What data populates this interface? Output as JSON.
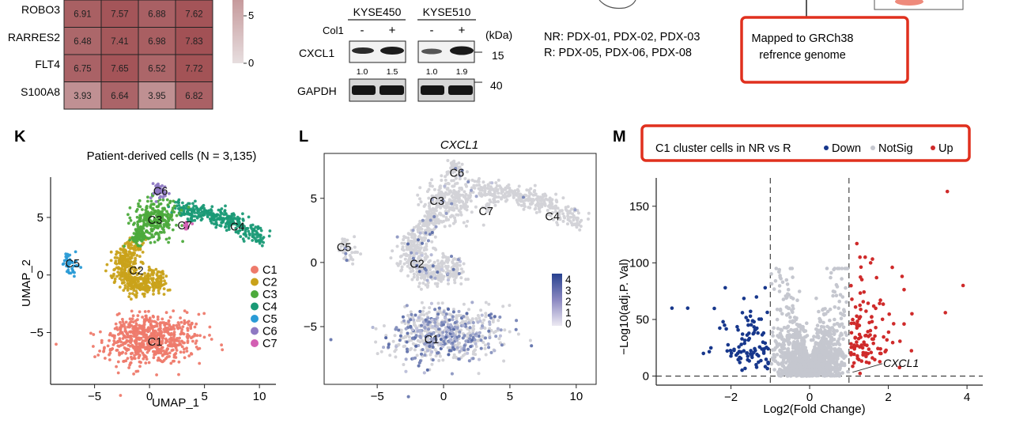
{
  "heatmap": {
    "rows": [
      {
        "gene": "ROBO3",
        "values": [
          6.91,
          7.57,
          6.88,
          7.62
        ]
      },
      {
        "gene": "RARRES2",
        "values": [
          6.48,
          7.41,
          6.98,
          7.83
        ]
      },
      {
        "gene": "FLT4",
        "values": [
          6.75,
          7.65,
          6.52,
          7.72
        ]
      },
      {
        "gene": "S100A8",
        "values": [
          3.93,
          6.64,
          3.95,
          6.82
        ]
      }
    ],
    "colorbar_ticks": [
      "5",
      "0"
    ],
    "colors": {
      "high": "#a14e52",
      "low": "#ddd0d1"
    }
  },
  "western_blot": {
    "cell_lines": [
      "KYSE450",
      "KYSE510"
    ],
    "treatment_label": "Col1",
    "lane_signs": [
      "-",
      "+",
      "-",
      "+"
    ],
    "unit_label": "(kDa)",
    "proteins": [
      {
        "name": "CXCL1",
        "kda": "15",
        "quant": [
          "1.0",
          "1.5",
          "1.0",
          "1.9"
        ]
      },
      {
        "name": "GAPDH",
        "kda": "40"
      }
    ]
  },
  "groups": {
    "nr_line": "NR: PDX-01, PDX-02, PDX-03",
    "r_line": "R: PDX-05, PDX-06, PDX-08"
  },
  "workflow_box": {
    "line1": "Mapped to GRCh38",
    "line2": "refrence genome",
    "highlight_color": "#e0301e"
  },
  "panel_k": {
    "letter": "K",
    "title": "Patient-derived cells (N = 3,135)",
    "xlabel": "UMAP_1",
    "ylabel": "UMAP_2",
    "xticks": [
      "−5",
      "0",
      "5",
      "10"
    ],
    "yticks": [
      "5",
      "0",
      "−5"
    ],
    "clusters": [
      {
        "name": "C1",
        "color": "#ee7a6b"
      },
      {
        "name": "C2",
        "color": "#c9a21a"
      },
      {
        "name": "C3",
        "color": "#4caa3c"
      },
      {
        "name": "C4",
        "color": "#1a9a76"
      },
      {
        "name": "C5",
        "color": "#2a9bd6"
      },
      {
        "name": "C6",
        "color": "#8e79c3"
      },
      {
        "name": "C7",
        "color": "#d35fb3"
      }
    ]
  },
  "panel_l": {
    "letter": "L",
    "title": "CXCL1",
    "xticks": [
      "−5",
      "0",
      "5",
      "10"
    ],
    "yticks": [
      "5",
      "0",
      "−5"
    ],
    "cluster_labels": [
      "C6",
      "C3",
      "C7",
      "C4",
      "C5",
      "C2",
      "C1"
    ],
    "colorbar_ticks": [
      "4",
      "3",
      "2",
      "1",
      "0"
    ],
    "colors": {
      "base": "#d3d3d8",
      "high": "#27418f"
    }
  },
  "panel_m": {
    "letter": "M",
    "legend_title": "C1 cluster cells in NR vs R",
    "legend_items": [
      {
        "label": "Down",
        "color": "#17378c"
      },
      {
        "label": "NotSig",
        "color": "#c5c7cf"
      },
      {
        "label": "Up",
        "color": "#cf2a2a"
      }
    ],
    "xlabel": "Log2(Fold Change)",
    "ylabel": "−Log10(adj.P. Val)",
    "xticks": [
      "−2",
      "0",
      "2",
      "4"
    ],
    "yticks": [
      "150",
      "100",
      "50",
      "0"
    ],
    "annotation": "CXCL1"
  },
  "chart_data": [
    {
      "type": "heatmap",
      "rows": [
        "ROBO3",
        "RARRES2",
        "FLT4",
        "S100A8"
      ],
      "values": [
        [
          6.91,
          7.57,
          6.88,
          7.62
        ],
        [
          6.48,
          7.41,
          6.98,
          7.83
        ],
        [
          6.75,
          7.65,
          6.52,
          7.72
        ],
        [
          3.93,
          6.64,
          3.95,
          6.82
        ]
      ],
      "colorbar_range": [
        0,
        8
      ]
    },
    {
      "type": "scatter",
      "title": "Patient-derived cells (N = 3,135)",
      "xlabel": "UMAP_1",
      "ylabel": "UMAP_2",
      "xlim": [
        -9,
        11.5
      ],
      "ylim": [
        -9.5,
        8.5
      ],
      "series": [
        {
          "name": "C1",
          "center": [
            0.5,
            -5.8
          ]
        },
        {
          "name": "C2",
          "center": [
            -1.2,
            0.4
          ]
        },
        {
          "name": "C3",
          "center": [
            0.5,
            4.8
          ]
        },
        {
          "name": "C4",
          "center": [
            8.0,
            4.2
          ]
        },
        {
          "name": "C5",
          "center": [
            -6.9,
            1.0
          ]
        },
        {
          "name": "C6",
          "center": [
            1.0,
            7.3
          ]
        },
        {
          "name": "C7",
          "center": [
            3.2,
            4.3
          ]
        }
      ]
    },
    {
      "type": "scatter",
      "title": "CXCL1",
      "xlim": [
        -9,
        11.5
      ],
      "ylim": [
        -9.5,
        8.5
      ],
      "colorbar_range": [
        0,
        4
      ]
    },
    {
      "type": "scatter",
      "title": "C1 cluster cells in NR vs R",
      "xlabel": "Log2(Fold Change)",
      "ylabel": "−Log10(adj.P. Val)",
      "xlim": [
        -3.9,
        4.4
      ],
      "ylim": [
        -8,
        175
      ],
      "thresholds": {
        "x": [
          -1,
          1
        ],
        "y": 1.3
      },
      "annotations": [
        {
          "label": "CXCL1",
          "x": 1.05,
          "y": 2
        }
      ],
      "series": [
        {
          "name": "Down",
          "x_range": [
            -3.6,
            -1.0
          ],
          "y_range": [
            0,
            78
          ]
        },
        {
          "name": "NotSig",
          "x_range": [
            -1.0,
            1.0
          ],
          "y_range": [
            0,
            95
          ]
        },
        {
          "name": "Up",
          "x_range": [
            1.0,
            3.9
          ],
          "y_range": [
            0,
            165
          ]
        }
      ]
    }
  ]
}
